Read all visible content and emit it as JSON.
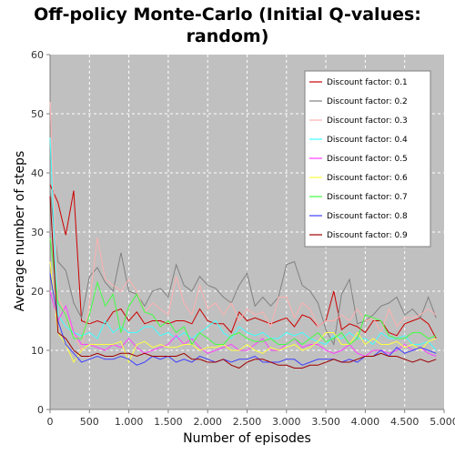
{
  "chart_data": {
    "type": "line",
    "title_line1": "Off-policy Monte-Carlo (Initial Q-values:",
    "title_line2": "random)",
    "xlabel": "Number of episodes",
    "ylabel": "Average number of steps",
    "xlim": [
      0,
      5000
    ],
    "ylim": [
      0,
      60
    ],
    "x_ticks": [
      0,
      500,
      1000,
      1500,
      2000,
      2500,
      3000,
      3500,
      4000,
      4500,
      5000
    ],
    "x_tick_labels": [
      "0",
      "500",
      "1.000",
      "1.500",
      "2.000",
      "2.500",
      "3.000",
      "3.500",
      "4.000",
      "4.500",
      "5.000"
    ],
    "y_ticks": [
      0,
      10,
      20,
      30,
      40,
      50,
      60
    ],
    "y_tick_labels": [
      "0",
      "10",
      "20",
      "30",
      "40",
      "50",
      "60"
    ],
    "grid": true,
    "legend_position": "top-right",
    "x": [
      0,
      100,
      200,
      300,
      400,
      500,
      600,
      700,
      800,
      900,
      1000,
      1100,
      1200,
      1300,
      1400,
      1500,
      1600,
      1700,
      1800,
      1900,
      2000,
      2100,
      2200,
      2300,
      2400,
      2500,
      2600,
      2700,
      2800,
      2900,
      3000,
      3100,
      3200,
      3300,
      3400,
      3500,
      3600,
      3700,
      3800,
      3900,
      4000,
      4100,
      4200,
      4300,
      4400,
      4500,
      4600,
      4700,
      4800,
      4900
    ],
    "series": [
      {
        "name": "Discount factor: 0.1",
        "color": "#cc0000",
        "values": [
          38,
          35,
          29.5,
          37,
          15,
          14.5,
          15,
          14.5,
          16.5,
          17,
          15,
          16.5,
          14.5,
          15,
          15,
          14.5,
          15,
          15,
          14.5,
          17,
          15,
          14.5,
          14.5,
          13,
          16.5,
          15,
          15.5,
          15,
          14.5,
          15,
          15.5,
          14,
          16,
          15.5,
          14,
          15,
          20,
          13.5,
          14.5,
          14,
          13,
          15,
          15,
          13,
          12.5,
          14.5,
          15,
          15.5,
          14.5,
          12
        ]
      },
      {
        "name": "Discount factor: 0.2",
        "color": "#808080",
        "values": [
          37,
          25,
          23.5,
          18,
          15.5,
          22.5,
          24,
          21.5,
          20,
          26.5,
          20,
          19.5,
          17.5,
          20,
          20.5,
          19,
          24.5,
          21,
          20,
          22.5,
          21,
          20.5,
          19,
          18,
          21,
          23,
          17.5,
          19,
          17.5,
          19,
          24.5,
          25,
          21,
          20,
          18,
          13.5,
          11,
          19.5,
          22,
          14.5,
          15,
          16,
          17.5,
          18,
          19,
          16,
          17,
          15.5,
          19,
          15.5
        ]
      },
      {
        "name": "Discount factor: 0.3",
        "color": "#ffb0b0",
        "values": [
          52,
          19,
          16,
          13,
          10,
          18,
          29,
          22,
          21,
          20,
          22,
          20,
          16.5,
          18,
          17,
          16,
          22.5,
          18,
          16,
          21,
          17,
          18,
          16,
          18,
          15,
          17,
          16,
          16.5,
          14,
          19,
          19,
          15.5,
          18,
          17,
          14,
          15,
          15,
          16,
          15,
          17,
          15,
          15.5,
          13,
          17,
          14,
          15.5,
          15.5,
          16,
          17,
          16
        ]
      },
      {
        "name": "Discount factor: 0.4",
        "color": "#40ffff",
        "values": [
          46,
          16,
          14,
          13,
          12.5,
          13,
          12,
          15,
          13,
          14,
          13,
          13,
          14,
          14,
          12.5,
          13,
          12,
          13,
          12,
          13,
          14,
          15,
          13,
          12,
          14,
          13,
          12.5,
          13,
          12,
          12,
          13,
          12.5,
          13,
          12,
          11.5,
          11,
          12.5,
          12,
          13,
          12,
          12,
          11,
          13,
          12,
          12,
          12.5,
          11,
          11,
          11.5,
          10
        ]
      },
      {
        "name": "Discount factor: 0.5",
        "color": "#ff40ff",
        "values": [
          20,
          15,
          17.5,
          13,
          11,
          11,
          10.5,
          10,
          11,
          10.5,
          12,
          10.5,
          9.5,
          10,
          10.5,
          11,
          12.5,
          11,
          12,
          10.5,
          9.5,
          10,
          10.5,
          11,
          10,
          10,
          11,
          12,
          10,
          10,
          11,
          12,
          10.5,
          11,
          11,
          10,
          9.5,
          10,
          11,
          9.5,
          9,
          10,
          10,
          9.5,
          10,
          11,
          10,
          10.5,
          9.5,
          9
        ]
      },
      {
        "name": "Discount factor: 0.6",
        "color": "#ffff40",
        "values": [
          25,
          13,
          11,
          8,
          10,
          11,
          11,
          11,
          11,
          11.5,
          8,
          11,
          11.5,
          10.5,
          11,
          10.5,
          10.5,
          11,
          11,
          10,
          10.5,
          10.5,
          11,
          10,
          10,
          11,
          10,
          9.5,
          10.5,
          10,
          10.5,
          11,
          10,
          10.5,
          11.5,
          13,
          13,
          11,
          11,
          13,
          11,
          12,
          11,
          11,
          11.5,
          10.5,
          11,
          10,
          11.5,
          12
        ]
      },
      {
        "name": "Discount factor: 0.7",
        "color": "#40ff40",
        "values": [
          29,
          18,
          16,
          12,
          12,
          16,
          21.5,
          17.5,
          19.5,
          13,
          17.5,
          19.5,
          16.5,
          16,
          14,
          15,
          13,
          14,
          11,
          13,
          12,
          11,
          11,
          12.5,
          13,
          12,
          11.5,
          11.5,
          12,
          11,
          11,
          12,
          11,
          12,
          13,
          11.5,
          12,
          13,
          11,
          12,
          16,
          15.5,
          15,
          12.5,
          12,
          12,
          13,
          13,
          12,
          12.5
        ]
      },
      {
        "name": "Discount factor: 0.8",
        "color": "#4040ff",
        "values": [
          23,
          15,
          11,
          9.5,
          8,
          8.5,
          9,
          8.5,
          8.5,
          9,
          8.5,
          7.5,
          8,
          9,
          8.5,
          9,
          8,
          8.5,
          8,
          9,
          8.5,
          8,
          8.5,
          8,
          8.5,
          8.5,
          9,
          8,
          8,
          8,
          8.5,
          8.5,
          7.5,
          8,
          8.5,
          8.5,
          8.5,
          8,
          8.5,
          8,
          9,
          9,
          10,
          9,
          10.5,
          9.5,
          10,
          10.5,
          10,
          9.5
        ]
      },
      {
        "name": "Discount factor: 0.9",
        "color": "#a00000",
        "values": [
          36,
          13,
          12,
          10,
          9,
          9,
          9.5,
          9,
          9,
          9.5,
          9.5,
          9,
          9.5,
          9,
          9,
          9,
          9,
          9.5,
          8.5,
          8.5,
          8,
          8,
          8.5,
          7.5,
          7,
          8,
          8.5,
          8.5,
          8,
          7.5,
          7.5,
          7,
          7,
          7.5,
          7.5,
          8,
          8.5,
          8,
          8,
          8.5,
          9,
          9,
          9.5,
          9,
          9,
          8.5,
          8,
          8.5,
          8,
          8.5
        ]
      }
    ]
  }
}
